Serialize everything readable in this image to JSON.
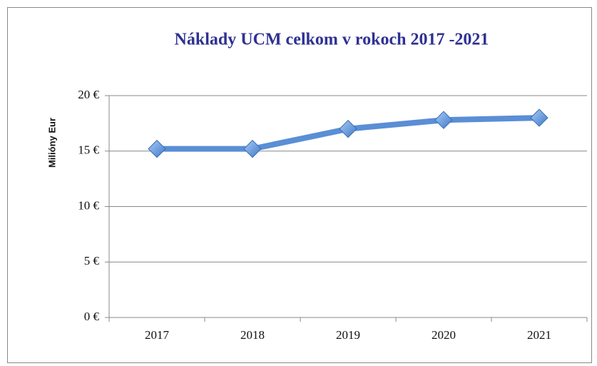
{
  "chart_data": {
    "type": "line",
    "title": "Náklady UCM celkom v rokoch 2017 -2021",
    "y_label": "Milióny Eur",
    "categories": [
      "2017",
      "2018",
      "2019",
      "2020",
      "2021"
    ],
    "series": [
      {
        "name": "Náklady",
        "color": "#5a8ed6",
        "values": [
          15.2,
          15.2,
          17.0,
          17.8,
          18.0
        ]
      }
    ],
    "ylim": [
      0,
      20
    ],
    "yticks": [
      {
        "value": 0,
        "label": "0 €"
      },
      {
        "value": 5,
        "label": "5 €"
      },
      {
        "value": 10,
        "label": "10 €"
      },
      {
        "value": 15,
        "label": "15 €"
      },
      {
        "value": 20,
        "label": "20 €"
      }
    ],
    "grid": true,
    "legend": false
  }
}
